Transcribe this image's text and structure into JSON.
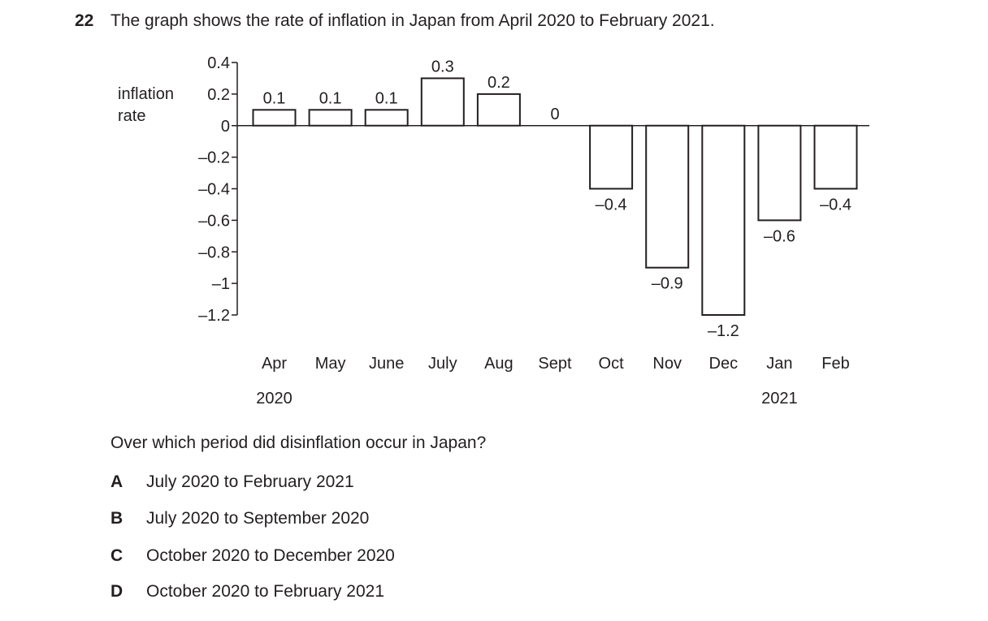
{
  "question": {
    "number": "22",
    "text": "The graph shows the rate of inflation in Japan from April 2020 to February 2021.",
    "prompt": "Over which period did disinflation occur in Japan?",
    "options": [
      {
        "letter": "A",
        "text": "July 2020 to February 2021"
      },
      {
        "letter": "B",
        "text": "July 2020 to September 2020"
      },
      {
        "letter": "C",
        "text": "October 2020 to December 2020"
      },
      {
        "letter": "D",
        "text": "October 2020 to February 2021"
      }
    ]
  },
  "chart_data": {
    "type": "bar",
    "ylabel": "inflation\nrate",
    "ylim": [
      -1.2,
      0.4
    ],
    "yticks": [
      0.4,
      0.2,
      0,
      -0.2,
      -0.4,
      -0.6,
      -0.8,
      -1,
      -1.2
    ],
    "ytick_labels": [
      "0.4",
      "0.2",
      "0",
      "–0.2",
      "–0.4",
      "–0.6",
      "–0.8",
      "–1",
      "–1.2"
    ],
    "categories": [
      "Apr",
      "May",
      "June",
      "July",
      "Aug",
      "Sept",
      "Oct",
      "Nov",
      "Dec",
      "Jan",
      "Feb"
    ],
    "values": [
      0.1,
      0.1,
      0.1,
      0.3,
      0.2,
      0,
      -0.4,
      -0.9,
      -1.2,
      -0.6,
      -0.4
    ],
    "value_labels": [
      "0.1",
      "0.1",
      "0.1",
      "0.3",
      "0.2",
      "0",
      "–0.4",
      "–0.9",
      "–1.2",
      "–0.6",
      "–0.4"
    ],
    "year_labels": [
      {
        "category_index": 0,
        "text": "2020"
      },
      {
        "category_index": 9,
        "text": "2021"
      }
    ],
    "grid": false,
    "bar_fill": "#ffffff",
    "bar_stroke": "#231f20"
  }
}
